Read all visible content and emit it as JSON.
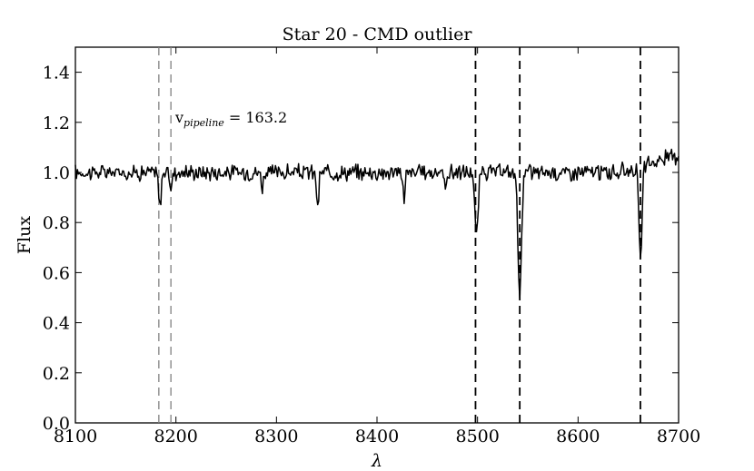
{
  "chart_data": {
    "type": "line",
    "title": "Star 20 - CMD outlier",
    "xlabel": "λ",
    "ylabel": "Flux",
    "xlim": [
      8100,
      8700
    ],
    "ylim": [
      0.0,
      1.5
    ],
    "x_ticks": [
      8100,
      8200,
      8300,
      8400,
      8500,
      8600,
      8700
    ],
    "x_tick_labels": [
      "8100",
      "8200",
      "8300",
      "8400",
      "8500",
      "8600",
      "8700"
    ],
    "y_ticks": [
      0.0,
      0.2,
      0.4,
      0.6,
      0.8,
      1.0,
      1.2,
      1.4
    ],
    "y_tick_labels": [
      "0.0",
      "0.2",
      "0.4",
      "0.6",
      "0.8",
      "1.0",
      "1.2",
      "1.4"
    ],
    "grid": false,
    "annotation": {
      "base": "v",
      "subscript": "pipeline",
      "rest": " = 163.2",
      "x": 8197,
      "y": 1.2
    },
    "vertical_lines": [
      {
        "x": 8183,
        "style": "dashed",
        "color": "#808080"
      },
      {
        "x": 8195,
        "style": "dashed",
        "color": "#808080"
      },
      {
        "x": 8498,
        "style": "dashed",
        "color": "#000000"
      },
      {
        "x": 8542,
        "style": "dashed",
        "color": "#000000"
      },
      {
        "x": 8662,
        "style": "dashed",
        "color": "#000000"
      }
    ],
    "series": [
      {
        "color": "#000000",
        "continuum": 1.0,
        "noise": 0.025,
        "step": 1.0,
        "absorption": [
          {
            "x": 8184,
            "depth": 0.14,
            "width": 1.2
          },
          {
            "x": 8195,
            "depth": 0.07,
            "width": 1.0
          },
          {
            "x": 8286,
            "depth": 0.07,
            "width": 0.8
          },
          {
            "x": 8341,
            "depth": 0.16,
            "width": 1.0
          },
          {
            "x": 8427,
            "depth": 0.14,
            "width": 0.8
          },
          {
            "x": 8468,
            "depth": 0.08,
            "width": 0.8
          },
          {
            "x": 8499,
            "depth": 0.26,
            "width": 1.6
          },
          {
            "x": 8542,
            "depth": 0.47,
            "width": 1.8
          },
          {
            "x": 8662,
            "depth": 0.37,
            "width": 1.6
          }
        ],
        "rise": {
          "start": 8640,
          "end": 8700,
          "amount": 0.07
        }
      }
    ]
  }
}
